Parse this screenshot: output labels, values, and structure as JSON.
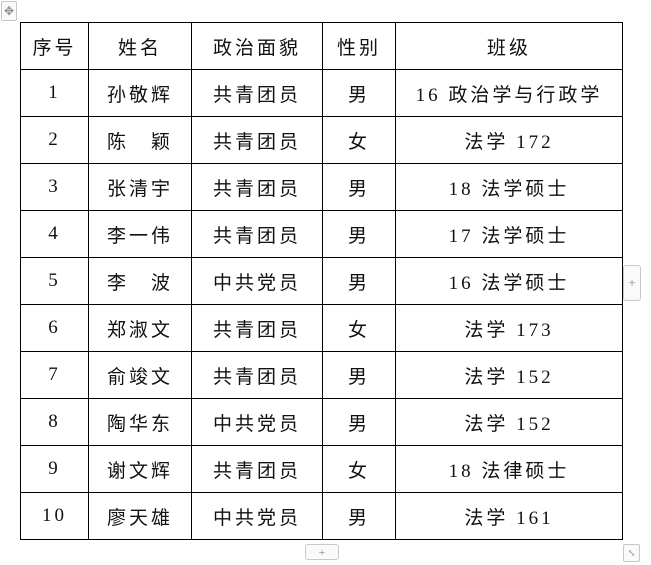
{
  "table": {
    "headers": [
      "序号",
      "姓名",
      "政治面貌",
      "性别",
      "班级"
    ],
    "rows": [
      [
        "1",
        "孙敬辉",
        "共青团员",
        "男",
        "16 政治学与行政学"
      ],
      [
        "2",
        "陈　颖",
        "共青团员",
        "女",
        "法学 172"
      ],
      [
        "3",
        "张清宇",
        "共青团员",
        "男",
        "18 法学硕士"
      ],
      [
        "4",
        "李一伟",
        "共青团员",
        "男",
        "17 法学硕士"
      ],
      [
        "5",
        "李　波",
        "中共党员",
        "男",
        "16 法学硕士"
      ],
      [
        "6",
        "郑淑文",
        "共青团员",
        "女",
        "法学 173"
      ],
      [
        "7",
        "俞竣文",
        "共青团员",
        "男",
        "法学 152"
      ],
      [
        "8",
        "陶华东",
        "中共党员",
        "男",
        "法学 152"
      ],
      [
        "9",
        "谢文辉",
        "共青团员",
        "女",
        "18 法律硕士"
      ],
      [
        "10",
        "廖天雄",
        "中共党员",
        "男",
        "法学 161"
      ]
    ]
  },
  "icons": {
    "move": "move-icon",
    "add_column": "plus-icon",
    "add_row": "plus-icon",
    "resize": "resize-icon"
  },
  "glyphs": {
    "move": "✥",
    "plus": "+",
    "resize": "⤡"
  }
}
